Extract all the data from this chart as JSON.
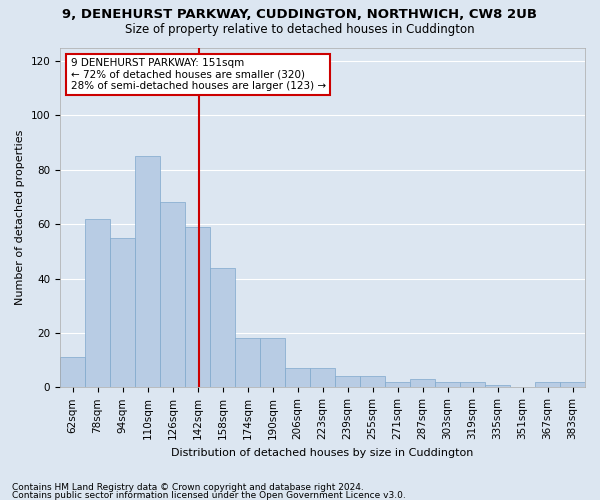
{
  "title1": "9, DENEHURST PARKWAY, CUDDINGTON, NORTHWICH, CW8 2UB",
  "title2": "Size of property relative to detached houses in Cuddington",
  "xlabel": "Distribution of detached houses by size in Cuddington",
  "ylabel": "Number of detached properties",
  "bar_labels": [
    "62sqm",
    "78sqm",
    "94sqm",
    "110sqm",
    "126sqm",
    "142sqm",
    "158sqm",
    "174sqm",
    "190sqm",
    "206sqm",
    "223sqm",
    "239sqm",
    "255sqm",
    "271sqm",
    "287sqm",
    "303sqm",
    "319sqm",
    "335sqm",
    "351sqm",
    "367sqm",
    "383sqm"
  ],
  "bar_values": [
    11,
    62,
    55,
    85,
    68,
    59,
    44,
    18,
    18,
    7,
    7,
    4,
    4,
    2,
    3,
    2,
    2,
    1,
    0,
    2,
    2
  ],
  "bar_color": "#b8cce4",
  "bar_edge_color": "#7fa8cc",
  "background_color": "#dce6f1",
  "grid_color": "#ffffff",
  "vline_color": "#cc0000",
  "annotation_text": "9 DENEHURST PARKWAY: 151sqm\n← 72% of detached houses are smaller (320)\n28% of semi-detached houses are larger (123) →",
  "annotation_box_color": "#ffffff",
  "annotation_box_edge_color": "#cc0000",
  "ylim_max": 125,
  "yticks": [
    0,
    20,
    40,
    60,
    80,
    100,
    120
  ],
  "footnote1": "Contains HM Land Registry data © Crown copyright and database right 2024.",
  "footnote2": "Contains public sector information licensed under the Open Government Licence v3.0.",
  "title1_fontsize": 9.5,
  "title2_fontsize": 8.5,
  "xlabel_fontsize": 8,
  "ylabel_fontsize": 8,
  "tick_fontsize": 7.5,
  "annotation_fontsize": 7.5,
  "footnote_fontsize": 6.5
}
